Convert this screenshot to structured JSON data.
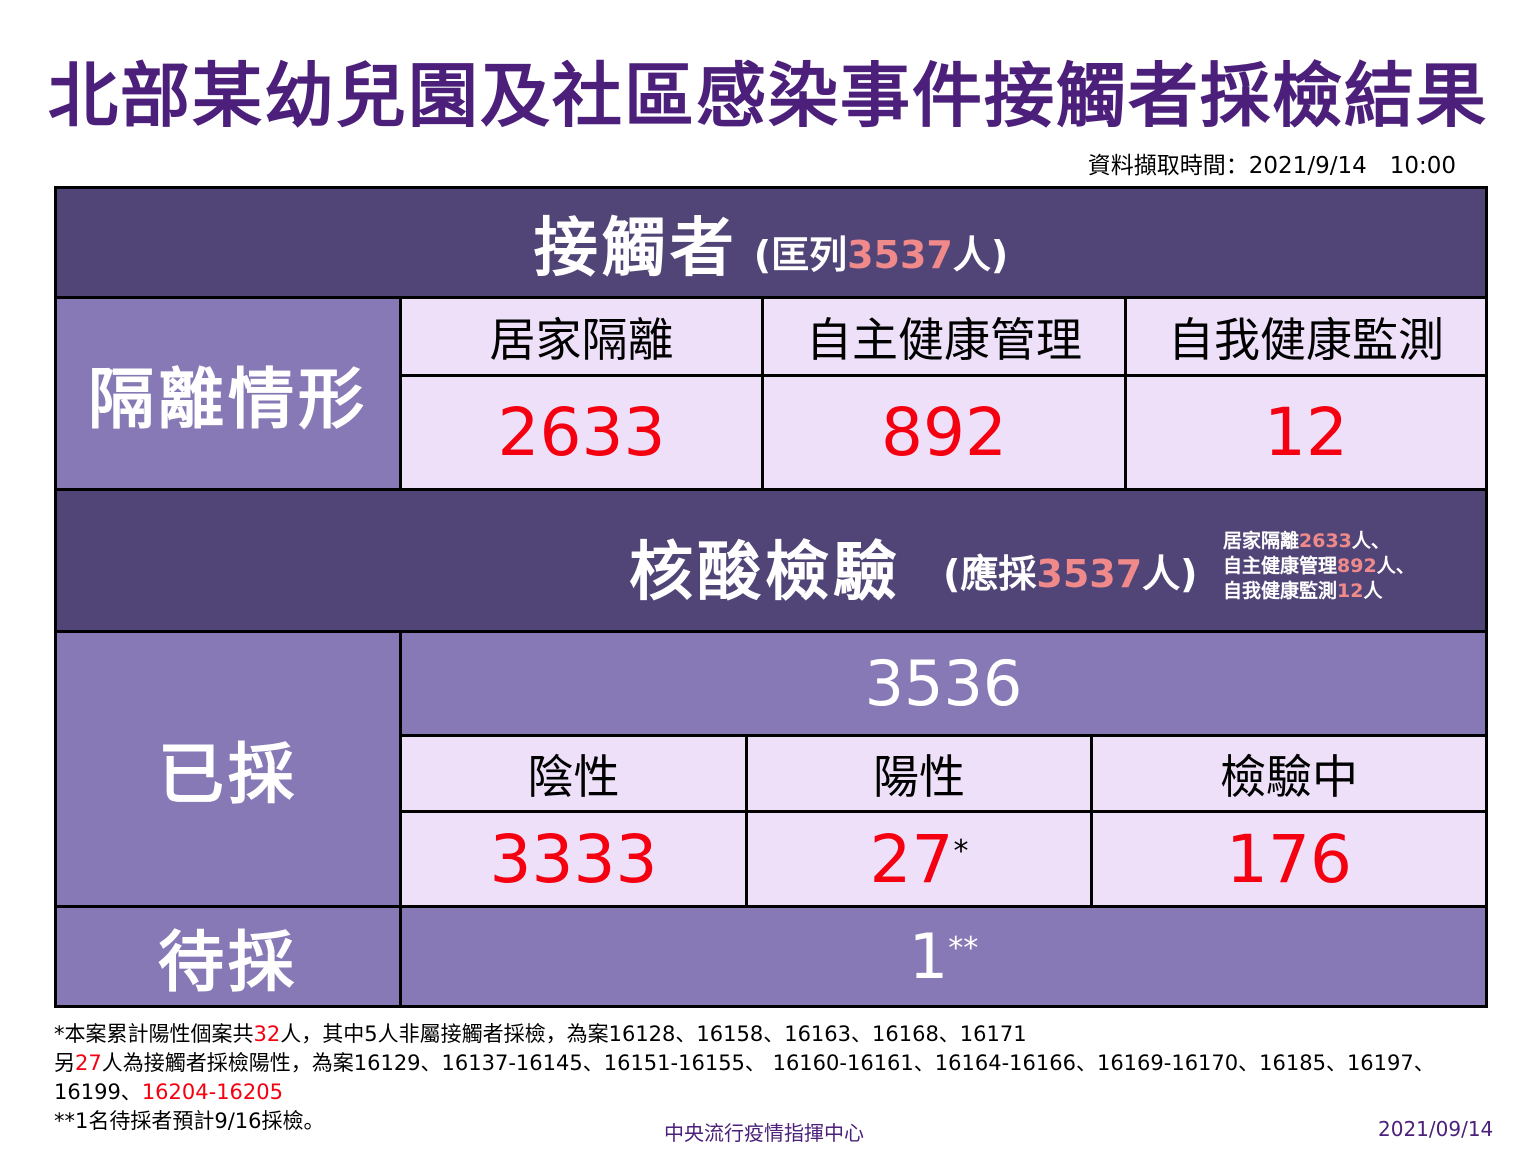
{
  "title": "北部某幼兒園及社區感染事件接觸者採檢結果",
  "timestamp": "資料擷取時間：2021/9/14　10:00",
  "contacts": {
    "title": "接觸者",
    "paren_open": "(匡列",
    "count": "3537",
    "paren_close": "人)"
  },
  "isolation": {
    "label": "隔離情形",
    "columns": [
      {
        "label": "居家隔離",
        "value": "2633"
      },
      {
        "label": "自主健康管理",
        "value": "892"
      },
      {
        "label": "自我健康監測",
        "value": "12"
      }
    ]
  },
  "testing": {
    "title": "核酸檢驗",
    "paren_open": "(應採",
    "count": "3537",
    "paren_close": "人)",
    "note": [
      {
        "label": "居家隔離",
        "value": "2633",
        "suffix": "人、"
      },
      {
        "label": "自主健康管理",
        "value": "892",
        "suffix": "人、"
      },
      {
        "label": "自我健康監測",
        "value": "12",
        "suffix": "人"
      }
    ]
  },
  "sampled": {
    "label": "已採",
    "total": "3536",
    "columns": [
      {
        "label": "陰性",
        "value": "3333",
        "mark": ""
      },
      {
        "label": "陽性",
        "value": "27",
        "mark": "*"
      },
      {
        "label": "檢驗中",
        "value": "176",
        "mark": ""
      }
    ]
  },
  "pending": {
    "label": "待採",
    "value": "1",
    "mark": "**"
  },
  "footnotes": {
    "line1_a": "*本案累計陽性個案共",
    "line1_num": "32",
    "line1_b": "人，其中5人非屬接觸者採檢，為案16128、16158、16163、16168、16171",
    "line2_a": " 另",
    "line2_num": "27",
    "line2_b": "人為接觸者採檢陽性，為案16129、16137-16145、16151-16155、 16160-16161、16164-16166、16169-16170、16185、16197、",
    "line3_a": " 16199、",
    "line3_red": "16204-16205",
    "line4": "**1名待採者預計9/16採檢。"
  },
  "footer": {
    "org": "中央流行疫情指揮中心",
    "date": "2021/09/14"
  },
  "colors": {
    "title": "#4b1f7a",
    "dark_band": "#514477",
    "mid_band": "#8779b5",
    "light_cell": "#ede0f8",
    "number_red": "#f50010",
    "highlight_pink": "#f08a8a"
  }
}
